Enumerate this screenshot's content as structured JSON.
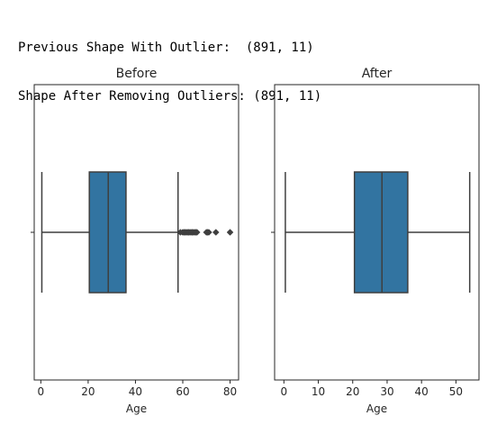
{
  "output": {
    "line1": "Previous Shape With Outlier:  (891, 11)",
    "line2": "Shape After Removing Outliers: (891, 11)"
  },
  "colors": {
    "box_fill": "#3274a1",
    "line": "#3f3f3f",
    "frame": "#262626"
  },
  "chart_data": [
    {
      "type": "boxplot",
      "title": "Before",
      "xlabel": "Age",
      "ylabel": "",
      "xlim": [
        -2.8,
        83.6
      ],
      "xticks": [
        0,
        20,
        40,
        60,
        80
      ],
      "xtick_labels": [
        "0",
        "20",
        "40",
        "60",
        "80"
      ],
      "box": {
        "whisker_low": 0.42,
        "q1": 20.5,
        "median": 28.5,
        "q3": 36,
        "whisker_high": 58
      },
      "outliers": [
        59,
        60,
        60.5,
        61,
        61.5,
        62,
        62.5,
        63,
        63.5,
        64,
        64.5,
        65,
        65.5,
        66,
        70,
        70.5,
        71,
        74,
        80
      ]
    },
    {
      "type": "boxplot",
      "title": "After",
      "xlabel": "Age",
      "ylabel": "",
      "xlim": [
        -2.7,
        56.7
      ],
      "xticks": [
        0,
        10,
        20,
        30,
        40,
        50
      ],
      "xtick_labels": [
        "0",
        "10",
        "20",
        "30",
        "40",
        "50"
      ],
      "box": {
        "whisker_low": 0.42,
        "q1": 20.5,
        "median": 28.5,
        "q3": 36,
        "whisker_high": 54
      },
      "outliers": []
    }
  ]
}
